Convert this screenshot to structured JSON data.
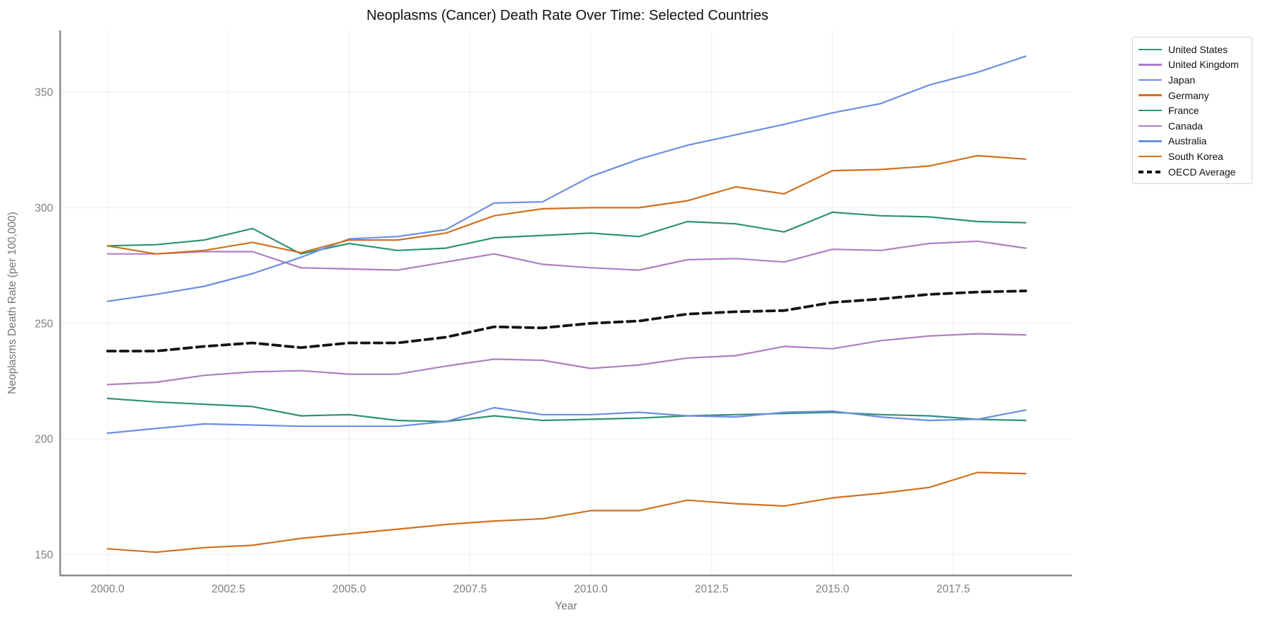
{
  "chart_data": {
    "type": "line",
    "title": "Neoplasms (Cancer) Death Rate Over Time: Selected Countries",
    "xlabel": "Year",
    "ylabel": "Neoplasms Death Rate (per 100,000)",
    "x": [
      2000,
      2001,
      2002,
      2003,
      2004,
      2005,
      2006,
      2007,
      2008,
      2009,
      2010,
      2011,
      2012,
      2013,
      2014,
      2015,
      2016,
      2017,
      2018,
      2019
    ],
    "x_ticks": [
      2000.0,
      2002.5,
      2005.0,
      2007.5,
      2010.0,
      2012.5,
      2015.0,
      2017.5
    ],
    "x_tick_labels": [
      "2000.0",
      "2002.5",
      "2005.0",
      "2007.5",
      "2010.0",
      "2012.5",
      "2015.0",
      "2017.5"
    ],
    "y_ticks": [
      150,
      200,
      250,
      300,
      350
    ],
    "y_tick_labels": [
      "150",
      "200",
      "250",
      "300",
      "350"
    ],
    "xlim": [
      1999.0,
      2020.0
    ],
    "ylim": [
      141,
      376.5
    ],
    "grid": true,
    "legend_position": "outside-top-right",
    "series": [
      {
        "name": "United States",
        "color": "#2e9277",
        "dash": false,
        "values": [
          283.5,
          284,
          286,
          291,
          280,
          284.5,
          281.5,
          282.5,
          287,
          288,
          289,
          287.5,
          294,
          293,
          289.5,
          298,
          296.5,
          296,
          294,
          293.5
        ]
      },
      {
        "name": "United Kingdom",
        "color": "#ae7ec4",
        "dash": false,
        "values": [
          280,
          280,
          281,
          281,
          274,
          273.5,
          273,
          276.5,
          280,
          275.5,
          274,
          273,
          277.5,
          278,
          276.5,
          282,
          281.5,
          284.5,
          285.5,
          282.5
        ]
      },
      {
        "name": "Japan",
        "color": "#6d8ee0",
        "dash": false,
        "values": [
          259.5,
          262.5,
          266,
          271.5,
          278.5,
          286.5,
          287.5,
          290.5,
          302,
          302.5,
          313.5,
          321,
          327,
          331.5,
          336,
          341,
          345,
          353,
          358.5,
          365.5
        ]
      },
      {
        "name": "Germany",
        "color": "#d2711f",
        "dash": false,
        "values": [
          283.5,
          280,
          281.5,
          285,
          280.5,
          286,
          286,
          289,
          296.5,
          299.5,
          300,
          300,
          303,
          309,
          306,
          316,
          316.5,
          318,
          322.5,
          321
        ]
      },
      {
        "name": "France",
        "color": "#2e9277",
        "dash": false,
        "values": [
          217.5,
          216,
          215,
          214,
          210,
          210.5,
          208,
          207.5,
          210,
          208,
          208.5,
          209,
          210,
          210.5,
          211,
          211.5,
          210.5,
          210,
          208.5,
          208
        ]
      },
      {
        "name": "Canada",
        "color": "#ae7ec4",
        "dash": false,
        "values": [
          223.5,
          224.5,
          227.5,
          229,
          229.5,
          228,
          228,
          231.5,
          234.5,
          234,
          230.5,
          232,
          235,
          236,
          240,
          239,
          242.5,
          244.5,
          245.5,
          245
        ]
      },
      {
        "name": "Australia",
        "color": "#6d8ee0",
        "dash": false,
        "values": [
          202.5,
          204.5,
          206.5,
          206,
          205.5,
          205.5,
          205.5,
          207.5,
          213.5,
          210.5,
          210.5,
          211.5,
          210,
          209.5,
          211.5,
          212,
          209.5,
          208,
          208.5,
          212.5
        ]
      },
      {
        "name": "South Korea",
        "color": "#d2711f",
        "dash": false,
        "values": [
          152.5,
          151,
          153,
          154,
          157,
          159,
          161,
          163,
          164.5,
          165.5,
          169,
          169,
          173.5,
          172,
          171,
          174.5,
          176.5,
          179,
          185.5,
          185
        ]
      },
      {
        "name": "OECD Average",
        "color": "#141414",
        "dash": true,
        "values": [
          238,
          238,
          240,
          241.5,
          239.5,
          241.5,
          241.5,
          244,
          248.5,
          248,
          250,
          251,
          254,
          255,
          255.5,
          259,
          260.5,
          262.5,
          263.5,
          264
        ]
      }
    ]
  }
}
